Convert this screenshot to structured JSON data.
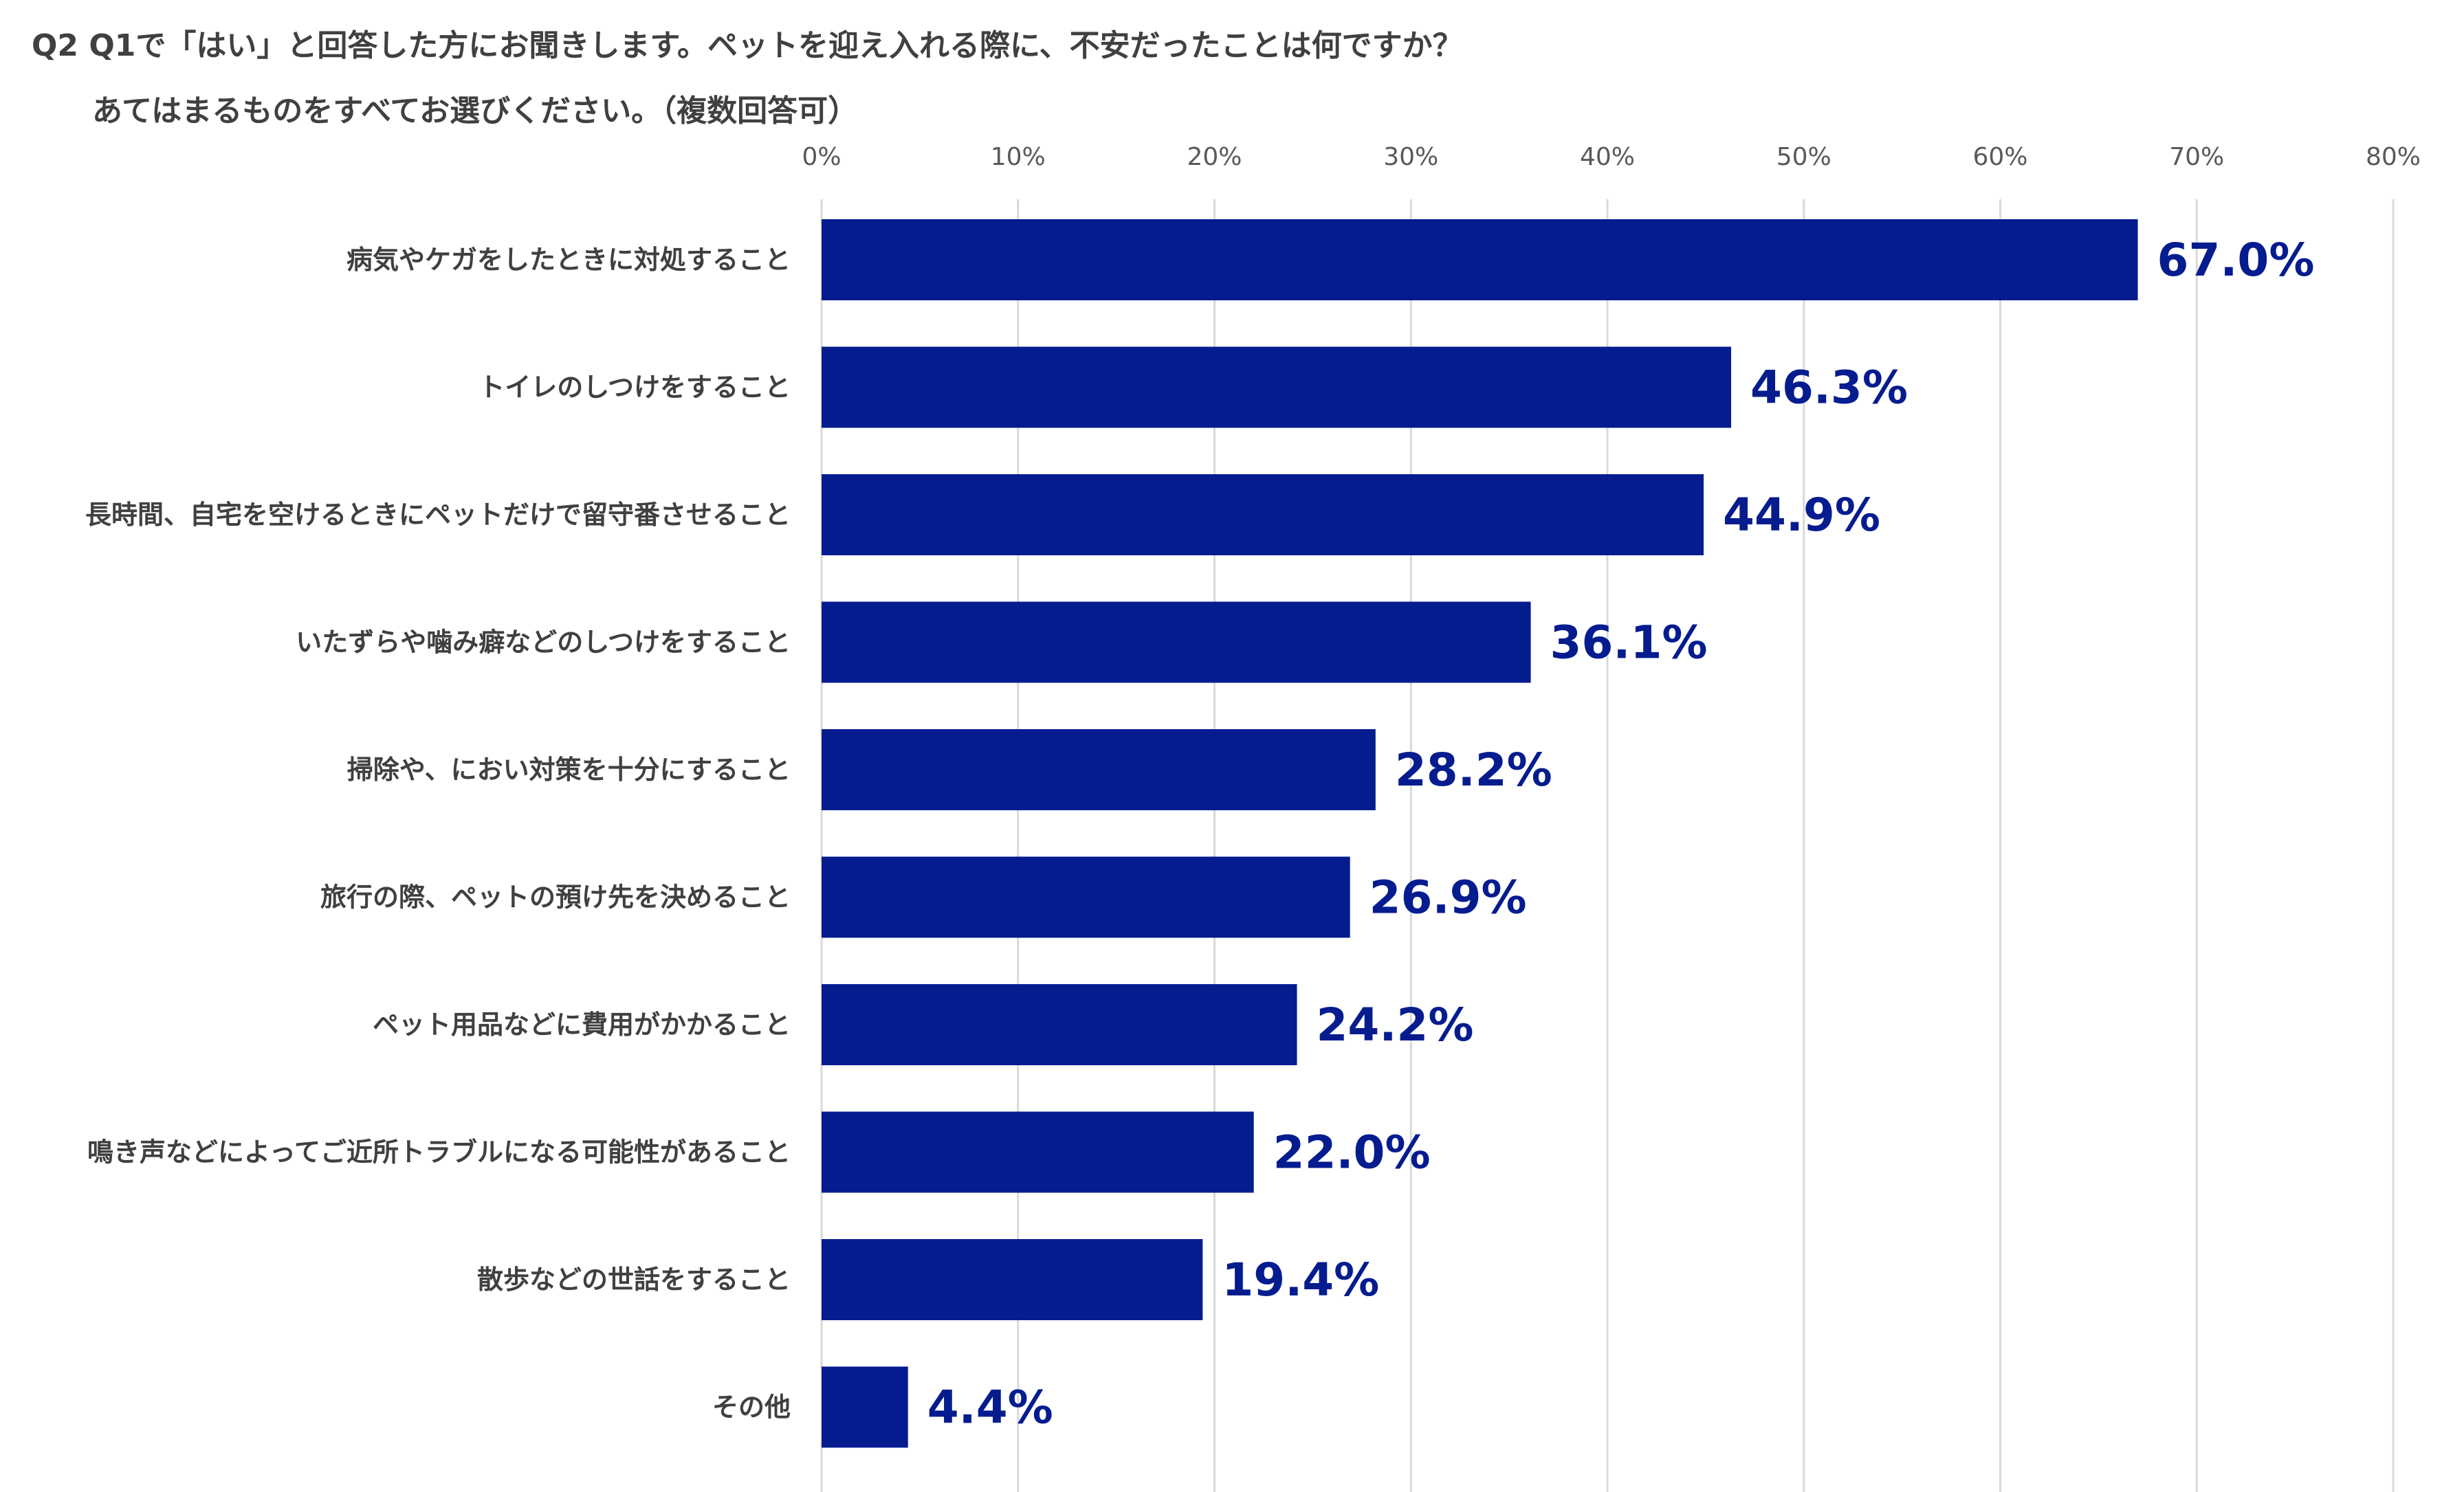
{
  "title": {
    "line1": "Q2 Q1で「はい」と回答した方にお聞きします。ペットを迎え入れる際に、不安だったことは何ですか？",
    "line2": "あてはまるものをすべてお選びください。（複数回答可）"
  },
  "chart_data": {
    "type": "bar",
    "orientation": "horizontal",
    "title": "Q2 Q1で「はい」と回答した方にお聞きします。ペットを迎え入れる際に、不安だったことは何ですか？ あてはまるものをすべてお選びください。（複数回答可）",
    "categories": [
      "病気やケガをしたときに対処すること",
      "トイレのしつけをすること",
      "長時間、自宅を空けるときにペットだけで留守番させること",
      "いたずらや噛み癖などのしつけをすること",
      "掃除や、におい対策を十分にすること",
      "旅行の際、ペットの預け先を決めること",
      "ペット用品などに費用がかかること",
      "鳴き声などによってご近所トラブルになる可能性があること",
      "散歩などの世話をすること",
      "その他"
    ],
    "values": [
      67.0,
      46.3,
      44.9,
      36.1,
      28.2,
      26.9,
      24.2,
      22.0,
      19.4,
      4.4
    ],
    "value_labels": [
      "67.0%",
      "46.3%",
      "44.9%",
      "36.1%",
      "28.2%",
      "26.9%",
      "24.2%",
      "22.0%",
      "19.4%",
      "4.4%"
    ],
    "xlim": [
      0,
      80
    ],
    "ticks": [
      0,
      10,
      20,
      30,
      40,
      50,
      60,
      70,
      80
    ],
    "tick_labels": [
      "0%",
      "10%",
      "20%",
      "30%",
      "40%",
      "50%",
      "60%",
      "70%",
      "80%"
    ],
    "x_axis_position": "top",
    "grid": true,
    "bar_color": "#051c8f",
    "grid_color": "#d9d9d9"
  }
}
